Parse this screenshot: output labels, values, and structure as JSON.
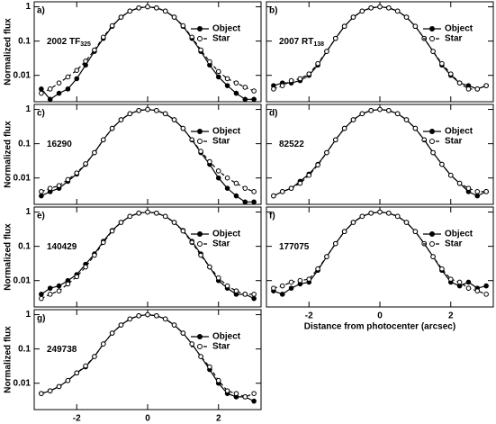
{
  "chart_data": [
    {
      "type": "line",
      "label": "a)",
      "name": "2002 TF",
      "name_sub": "325",
      "ylabel": "Normalized flux",
      "x": [
        -3,
        -2.75,
        -2.5,
        -2.25,
        -2,
        -1.75,
        -1.5,
        -1.25,
        -1,
        -0.75,
        -0.5,
        -0.25,
        0,
        0.25,
        0.5,
        0.75,
        1,
        1.25,
        1.5,
        1.75,
        2,
        2.25,
        2.5,
        2.75,
        3
      ],
      "series": [
        {
          "name": "Object",
          "color": "#000000",
          "marker": "filled",
          "dashed": false,
          "values": [
            0.004,
            0.002,
            0.003,
            0.004,
            0.008,
            0.02,
            0.05,
            0.12,
            0.27,
            0.5,
            0.75,
            0.93,
            1,
            0.93,
            0.75,
            0.5,
            0.27,
            0.12,
            0.05,
            0.02,
            0.009,
            0.005,
            0.003,
            0.002,
            0.002
          ]
        },
        {
          "name": "Star",
          "color": "#000000",
          "marker": "open",
          "dashed": true,
          "values": [
            0.003,
            0.004,
            0.006,
            0.009,
            0.014,
            0.026,
            0.055,
            0.13,
            0.28,
            0.5,
            0.75,
            0.93,
            1,
            0.93,
            0.75,
            0.5,
            0.28,
            0.13,
            0.055,
            0.025,
            0.013,
            0.008,
            0.006,
            0.0045,
            0.0035
          ]
        }
      ],
      "xlim": [
        -3.2,
        3.2
      ],
      "ylim": [
        0.0017,
        1.4
      ],
      "log_y": true,
      "xticks": [
        -2,
        0,
        2
      ],
      "yticks": [
        1,
        0.1,
        0.01
      ],
      "show_xtick_labels": false,
      "show_ytick_labels": true,
      "legend": "upper right"
    },
    {
      "type": "line",
      "label": "b)",
      "name": "2007 RT",
      "name_sub": "138",
      "x": [
        -3,
        -2.75,
        -2.5,
        -2.25,
        -2,
        -1.75,
        -1.5,
        -1.25,
        -1,
        -0.75,
        -0.5,
        -0.25,
        0,
        0.25,
        0.5,
        0.75,
        1,
        1.25,
        1.5,
        1.75,
        2,
        2.25,
        2.5,
        2.75,
        3
      ],
      "series": [
        {
          "name": "Object",
          "color": "#000000",
          "marker": "filled",
          "dashed": false,
          "values": [
            0.005,
            0.006,
            0.006,
            0.007,
            0.01,
            0.02,
            0.05,
            0.12,
            0.27,
            0.5,
            0.75,
            0.93,
            1,
            0.93,
            0.75,
            0.5,
            0.27,
            0.12,
            0.05,
            0.02,
            0.01,
            0.006,
            0.005,
            0.004,
            0.005
          ]
        },
        {
          "name": "Star",
          "color": "#000000",
          "marker": "open",
          "dashed": true,
          "values": [
            0.004,
            0.005,
            0.007,
            0.008,
            0.011,
            0.022,
            0.05,
            0.12,
            0.27,
            0.5,
            0.75,
            0.93,
            1,
            0.93,
            0.75,
            0.5,
            0.27,
            0.12,
            0.05,
            0.022,
            0.011,
            0.006,
            0.004,
            0.004,
            0.005
          ]
        }
      ],
      "xlim": [
        -3.2,
        3.2
      ],
      "ylim": [
        0.0017,
        1.4
      ],
      "log_y": true,
      "xticks": [
        -2,
        0,
        2
      ],
      "yticks": [
        1,
        0.1,
        0.01
      ],
      "show_xtick_labels": false,
      "show_ytick_labels": false,
      "legend": "upper right"
    },
    {
      "type": "line",
      "label": "c)",
      "name": "16290",
      "ylabel": "Normalized flux",
      "x": [
        -3,
        -2.75,
        -2.5,
        -2.25,
        -2,
        -1.75,
        -1.5,
        -1.25,
        -1,
        -0.75,
        -0.5,
        -0.25,
        0,
        0.25,
        0.5,
        0.75,
        1,
        1.25,
        1.5,
        1.75,
        2,
        2.25,
        2.5,
        2.75,
        3
      ],
      "series": [
        {
          "name": "Object",
          "color": "#000000",
          "marker": "filled",
          "dashed": false,
          "values": [
            0.003,
            0.004,
            0.005,
            0.008,
            0.013,
            0.025,
            0.055,
            0.13,
            0.28,
            0.5,
            0.75,
            0.93,
            1,
            0.93,
            0.75,
            0.5,
            0.28,
            0.13,
            0.055,
            0.025,
            0.01,
            0.005,
            0.003,
            0.002,
            0.002
          ]
        },
        {
          "name": "Star",
          "color": "#000000",
          "marker": "open",
          "dashed": true,
          "values": [
            0.004,
            0.005,
            0.006,
            0.009,
            0.014,
            0.026,
            0.055,
            0.13,
            0.28,
            0.5,
            0.75,
            0.93,
            1,
            0.93,
            0.75,
            0.5,
            0.28,
            0.13,
            0.06,
            0.03,
            0.016,
            0.01,
            0.007,
            0.005,
            0.004
          ]
        }
      ],
      "xlim": [
        -3.2,
        3.2
      ],
      "ylim": [
        0.0017,
        1.4
      ],
      "log_y": true,
      "xticks": [
        -2,
        0,
        2
      ],
      "yticks": [
        1,
        0.1,
        0.01
      ],
      "show_xtick_labels": false,
      "show_ytick_labels": true,
      "legend": "upper right"
    },
    {
      "type": "line",
      "label": "d)",
      "name": "82522",
      "x": [
        -3,
        -2.75,
        -2.5,
        -2.25,
        -2,
        -1.75,
        -1.5,
        -1.25,
        -1,
        -0.75,
        -0.5,
        -0.25,
        0,
        0.25,
        0.5,
        0.75,
        1,
        1.25,
        1.5,
        1.75,
        2,
        2.25,
        2.5,
        2.75,
        3
      ],
      "series": [
        {
          "name": "Object",
          "color": "#000000",
          "marker": "filled",
          "dashed": false,
          "values": [
            0.003,
            0.004,
            0.005,
            0.008,
            0.013,
            0.025,
            0.055,
            0.13,
            0.28,
            0.5,
            0.75,
            0.93,
            1,
            0.93,
            0.75,
            0.5,
            0.28,
            0.13,
            0.055,
            0.025,
            0.012,
            0.007,
            0.004,
            0.003,
            0.004
          ]
        },
        {
          "name": "Star",
          "color": "#000000",
          "marker": "open",
          "dashed": true,
          "values": [
            0.003,
            0.004,
            0.005,
            0.007,
            0.012,
            0.024,
            0.055,
            0.13,
            0.28,
            0.5,
            0.75,
            0.93,
            1,
            0.93,
            0.75,
            0.5,
            0.28,
            0.13,
            0.055,
            0.025,
            0.012,
            0.007,
            0.005,
            0.004,
            0.004
          ]
        }
      ],
      "xlim": [
        -3.2,
        3.2
      ],
      "ylim": [
        0.0017,
        1.4
      ],
      "log_y": true,
      "xticks": [
        -2,
        0,
        2
      ],
      "yticks": [
        1,
        0.1,
        0.01
      ],
      "show_xtick_labels": false,
      "show_ytick_labels": false,
      "legend": "upper right"
    },
    {
      "type": "line",
      "label": "e)",
      "name": "140429",
      "ylabel": "Normalized flux",
      "x": [
        -3,
        -2.75,
        -2.5,
        -2.25,
        -2,
        -1.75,
        -1.5,
        -1.25,
        -1,
        -0.75,
        -0.5,
        -0.25,
        0,
        0.25,
        0.5,
        0.75,
        1,
        1.25,
        1.5,
        1.75,
        2,
        2.25,
        2.5,
        2.75,
        3
      ],
      "series": [
        {
          "name": "Object",
          "color": "#000000",
          "marker": "filled",
          "dashed": false,
          "values": [
            0.004,
            0.006,
            0.007,
            0.01,
            0.015,
            0.03,
            0.06,
            0.14,
            0.29,
            0.5,
            0.75,
            0.93,
            1,
            0.93,
            0.75,
            0.5,
            0.29,
            0.14,
            0.06,
            0.025,
            0.01,
            0.006,
            0.004,
            0.004,
            0.003
          ]
        },
        {
          "name": "Star",
          "color": "#000000",
          "marker": "open",
          "dashed": true,
          "values": [
            0.003,
            0.004,
            0.005,
            0.008,
            0.013,
            0.025,
            0.055,
            0.13,
            0.28,
            0.5,
            0.75,
            0.93,
            1,
            0.93,
            0.75,
            0.5,
            0.28,
            0.13,
            0.055,
            0.025,
            0.012,
            0.007,
            0.005,
            0.004,
            0.004
          ]
        }
      ],
      "xlim": [
        -3.2,
        3.2
      ],
      "ylim": [
        0.0017,
        1.4
      ],
      "log_y": true,
      "xticks": [
        -2,
        0,
        2
      ],
      "yticks": [
        1,
        0.1,
        0.01
      ],
      "show_xtick_labels": false,
      "show_ytick_labels": true,
      "legend": "upper right"
    },
    {
      "type": "line",
      "label": "f)",
      "name": "177075",
      "xlabel": "Distance from photocenter (arcsec)",
      "x": [
        -3,
        -2.75,
        -2.5,
        -2.25,
        -2,
        -1.75,
        -1.5,
        -1.25,
        -1,
        -0.75,
        -0.5,
        -0.25,
        0,
        0.25,
        0.5,
        0.75,
        1,
        1.25,
        1.5,
        1.75,
        2,
        2.25,
        2.5,
        2.75,
        3
      ],
      "series": [
        {
          "name": "Object",
          "color": "#000000",
          "marker": "filled",
          "dashed": false,
          "values": [
            0.005,
            0.004,
            0.006,
            0.008,
            0.009,
            0.02,
            0.05,
            0.12,
            0.27,
            0.5,
            0.75,
            0.93,
            1,
            0.93,
            0.75,
            0.5,
            0.27,
            0.12,
            0.05,
            0.02,
            0.009,
            0.007,
            0.009,
            0.006,
            0.007
          ]
        },
        {
          "name": "Star",
          "color": "#000000",
          "marker": "open",
          "dashed": true,
          "values": [
            0.006,
            0.007,
            0.009,
            0.01,
            0.011,
            0.022,
            0.05,
            0.12,
            0.27,
            0.5,
            0.75,
            0.93,
            1,
            0.93,
            0.75,
            0.5,
            0.27,
            0.12,
            0.05,
            0.022,
            0.011,
            0.009,
            0.006,
            0.005,
            0.004
          ]
        }
      ],
      "xlim": [
        -3.2,
        3.2
      ],
      "ylim": [
        0.0017,
        1.4
      ],
      "log_y": true,
      "xticks": [
        -2,
        0,
        2
      ],
      "yticks": [
        1,
        0.1,
        0.01
      ],
      "show_xtick_labels": true,
      "show_ytick_labels": false,
      "legend": "upper right"
    },
    {
      "type": "line",
      "label": "g)",
      "name": "249738",
      "ylabel": "Normalized flux",
      "xlabel": "Distance from photocenter (arcsec)",
      "x": [
        -3,
        -2.75,
        -2.5,
        -2.25,
        -2,
        -1.75,
        -1.5,
        -1.25,
        -1,
        -0.75,
        -0.5,
        -0.25,
        0,
        0.25,
        0.5,
        0.75,
        1,
        1.25,
        1.5,
        1.75,
        2,
        2.25,
        2.5,
        2.75,
        3
      ],
      "series": [
        {
          "name": "Object",
          "color": "#000000",
          "marker": "filled",
          "dashed": false,
          "values": [
            0.005,
            0.006,
            0.008,
            0.012,
            0.02,
            0.03,
            0.06,
            0.14,
            0.29,
            0.5,
            0.75,
            0.93,
            1,
            0.93,
            0.75,
            0.5,
            0.29,
            0.14,
            0.06,
            0.025,
            0.01,
            0.005,
            0.004,
            0.004,
            0.003
          ]
        },
        {
          "name": "Star",
          "color": "#000000",
          "marker": "open",
          "dashed": true,
          "values": [
            0.005,
            0.006,
            0.008,
            0.012,
            0.02,
            0.032,
            0.06,
            0.14,
            0.29,
            0.5,
            0.75,
            0.93,
            1,
            0.93,
            0.75,
            0.5,
            0.29,
            0.14,
            0.06,
            0.03,
            0.012,
            0.006,
            0.005,
            0.004,
            0.005
          ]
        }
      ],
      "xlim": [
        -3.2,
        3.2
      ],
      "ylim": [
        0.0017,
        1.4
      ],
      "log_y": true,
      "xticks": [
        -2,
        0,
        2
      ],
      "yticks": [
        1,
        0.1,
        0.01
      ],
      "show_xtick_labels": true,
      "show_ytick_labels": true,
      "legend": "upper right"
    }
  ]
}
